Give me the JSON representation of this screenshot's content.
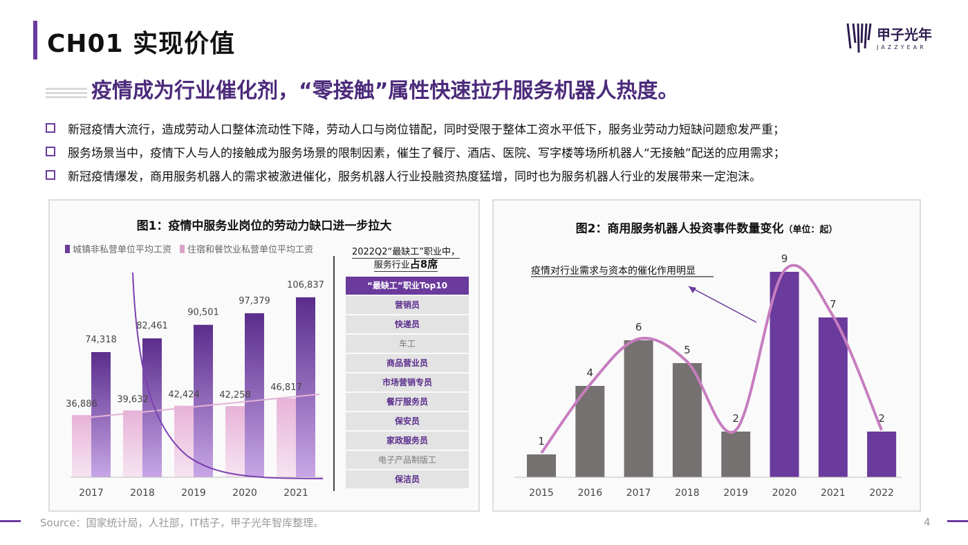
{
  "header": {
    "section": "CH01 实现价值",
    "logo_main": "甲子光年",
    "logo_sub": "JAZZYEAR"
  },
  "headline": "疫情成为行业催化剂，“零接触”属性快速拉升服务机器人热度。",
  "bullets": [
    "新冠疫情大流行，造成劳动人口整体流动性下降，劳动人口与岗位错配，同时受限于整体工资水平低下，服务业劳动力短缺问题愈发严重；",
    "服务场景当中，疫情下人与人的接触成为服务场景的限制因素，催生了餐厅、酒店、医院、写字楼等场所机器人“无接触”配送的应用需求；",
    "新冠疫情爆发，商用服务机器人的需求被激进催化，服务机器人行业投融资热度猛增，同时也为服务机器人行业的发展带来一定泡沫。"
  ],
  "figure1": {
    "title": "图1：疫情中服务业岗位的劳动力缺口进一步拉大",
    "legend": [
      "城镇非私营单位平均工资",
      "住宿和餐饮业私营单位平均工资"
    ],
    "side_title_line1": "2022Q2“最缺工”职业中，",
    "side_title_line2_a": "服务行业",
    "side_title_line2_b": "占8席",
    "table_header": "“最缺工”职业Top10",
    "table_rows": [
      {
        "label": "营销员",
        "service": true
      },
      {
        "label": "快递员",
        "service": true
      },
      {
        "label": "车工",
        "service": false
      },
      {
        "label": "商品营业员",
        "service": true
      },
      {
        "label": "市场营销专员",
        "service": true
      },
      {
        "label": "餐厅服务员",
        "service": true
      },
      {
        "label": "保安员",
        "service": true
      },
      {
        "label": "家政服务员",
        "service": true
      },
      {
        "label": "电子产品制版工",
        "service": false
      },
      {
        "label": "保洁员",
        "service": true
      }
    ]
  },
  "figure2": {
    "title": "图2：商用服务机器人投资事件数量变化",
    "unit": "（单位：起）",
    "annotation": "疫情对行业需求与资本的催化作用明显"
  },
  "colors": {
    "purple": "#6a3a9c",
    "purple_light": "#b88fdc",
    "pink": "#d9a3c9",
    "gray_bar": "#767171",
    "curve": "#c77dbf"
  },
  "chart_data": [
    {
      "type": "bar",
      "title": "图1：疫情中服务业岗位的劳动力缺口进一步拉大",
      "categories": [
        "2017",
        "2018",
        "2019",
        "2020",
        "2021"
      ],
      "series": [
        {
          "name": "城镇非私营单位平均工资",
          "values": [
            74318,
            82461,
            90501,
            97379,
            106837
          ],
          "labels": [
            "74,318",
            "82,461",
            "90,501",
            "97,379",
            "106,837"
          ]
        },
        {
          "name": "住宿和餐饮业私营单位平均工资",
          "values": [
            36886,
            39632,
            42424,
            42258,
            46817
          ],
          "labels": [
            "36,886",
            "39,632",
            "42,424",
            "42,258",
            "46,817"
          ]
        }
      ],
      "ylim": [
        0,
        115000
      ],
      "legend": "top-left",
      "grid": false
    },
    {
      "type": "bar",
      "title": "图2：商用服务机器人投资事件数量变化",
      "categories": [
        "2015",
        "2016",
        "2017",
        "2018",
        "2019",
        "2020",
        "2021",
        "2022"
      ],
      "values": [
        1,
        4,
        6,
        5,
        2,
        9,
        7,
        2
      ],
      "highlight_from": "2020",
      "ylim": [
        0,
        10
      ],
      "grid": false
    }
  ],
  "footer": {
    "source": "Source：国家统计局，人社部，IT桔子，甲子光年智库整理。",
    "page": "4"
  }
}
